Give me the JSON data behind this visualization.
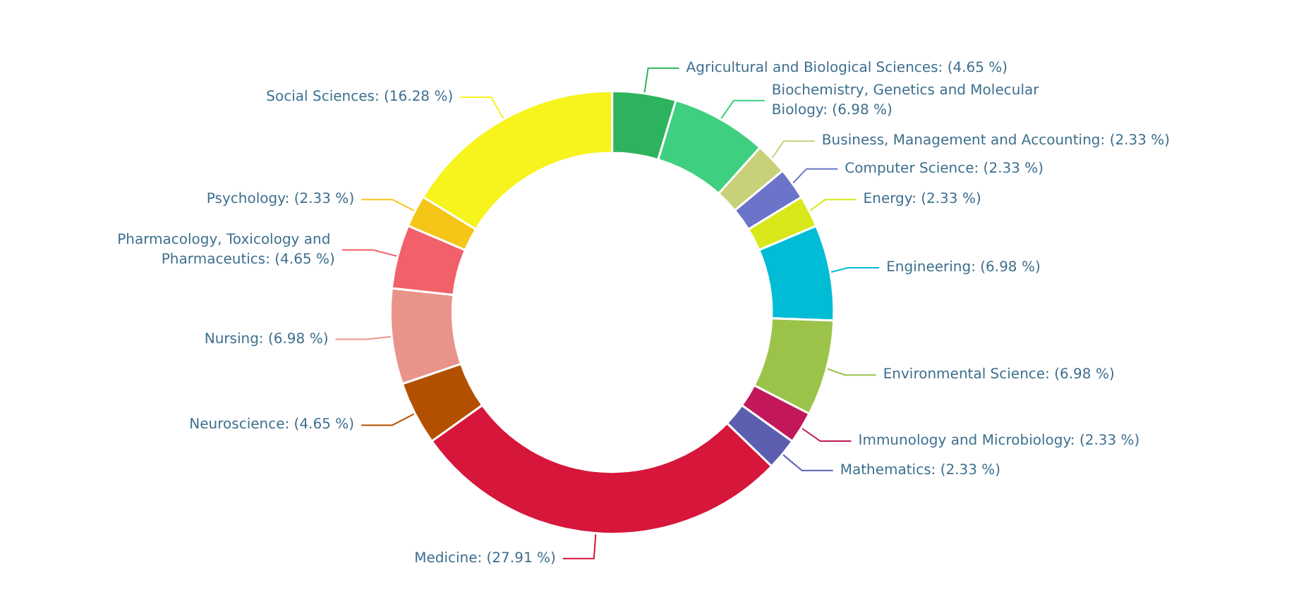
{
  "chart_data": {
    "type": "donut",
    "categories": [
      "Agricultural and Biological Sciences",
      "Biochemistry, Genetics and Molecular Biology",
      "Business, Management and Accounting",
      "Computer Science",
      "Energy",
      "Engineering",
      "Environmental Science",
      "Immunology and Microbiology",
      "Mathematics",
      "Medicine",
      "Neuroscience",
      "Nursing",
      "Pharmacology, Toxicology and Pharmaceutics",
      "Psychology",
      "Social Sciences"
    ],
    "values": [
      4.65,
      6.98,
      2.33,
      2.33,
      2.33,
      6.98,
      6.98,
      2.33,
      2.33,
      27.91,
      4.65,
      6.98,
      4.65,
      2.33,
      16.28
    ],
    "colors": [
      "#2db35d",
      "#3fcf80",
      "#c8d17a",
      "#6b74c9",
      "#d8e81a",
      "#00bcd4",
      "#9bc34a",
      "#c2185b",
      "#5c5fb0",
      "#d6163a",
      "#b35000",
      "#e8948a",
      "#f2606a",
      "#f5c518",
      "#f7f31c"
    ],
    "value_labels": [
      "(4.65 %)",
      "(6.98 %)",
      "(2.33 %)",
      "(2.33 %)",
      "(2.33 %)",
      "(6.98 %)",
      "(6.98 %)",
      "(2.33 %)",
      "(2.33 %)",
      "(27.91 %)",
      "(4.65 %)",
      "(6.98 %)",
      "(4.65 %)",
      "(2.33 %)",
      "(16.28 %)"
    ]
  }
}
